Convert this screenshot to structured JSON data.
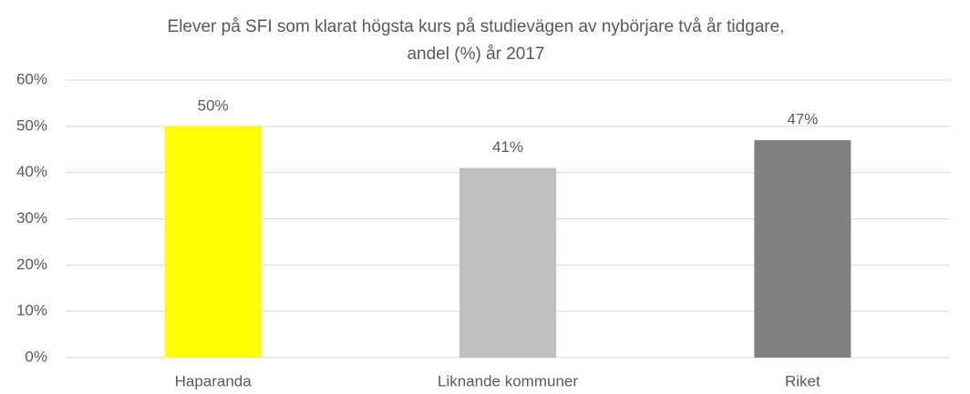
{
  "chart_data": {
    "type": "bar",
    "title": [
      "Elever på SFI som klarat högsta kurs på studievägen av nybörjare två år tidgare,",
      "andel (%) år 2017"
    ],
    "categories": [
      "Haparanda",
      "Liknande kommuner",
      "Riket"
    ],
    "values": [
      50,
      41,
      47
    ],
    "value_labels": [
      "50%",
      "41%",
      "47%"
    ],
    "colors": [
      "#ffff00",
      "#bfbfbf",
      "#808080"
    ],
    "ylim": [
      0,
      60
    ],
    "yticks": [
      {
        "value": 0,
        "label": "0%"
      },
      {
        "value": 10,
        "label": "10%"
      },
      {
        "value": 20,
        "label": "20%"
      },
      {
        "value": 30,
        "label": "30%"
      },
      {
        "value": 40,
        "label": "40%"
      },
      {
        "value": 50,
        "label": "50%"
      },
      {
        "value": 60,
        "label": "60%"
      }
    ],
    "grid": true
  }
}
